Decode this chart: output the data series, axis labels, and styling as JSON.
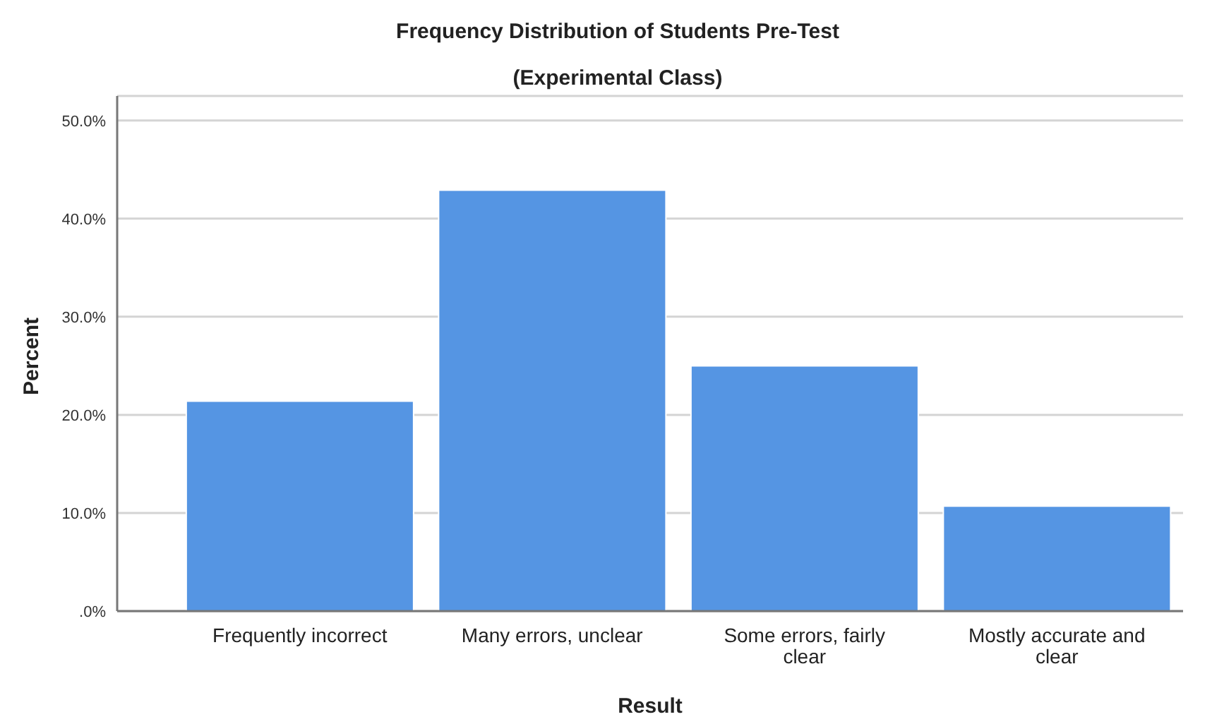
{
  "chart_data": {
    "type": "bar",
    "title": "Frequency Distribution of Students Pre-Test",
    "subtitle": "(Experimental Class)",
    "xlabel": "Result",
    "ylabel": "Percent",
    "categories": [
      "Frequently incorrect",
      "Many errors, unclear",
      "Some errors, fairly clear",
      "Mostly accurate and clear"
    ],
    "values": [
      21.4,
      42.9,
      25.0,
      10.7
    ],
    "color": "#5595e3",
    "ylim": [
      0,
      52.5
    ],
    "yticks": [
      {
        "value": 0,
        "label": ".0%"
      },
      {
        "value": 10,
        "label": "10.0%"
      },
      {
        "value": 20,
        "label": "20.0%"
      },
      {
        "value": 30,
        "label": "30.0%"
      },
      {
        "value": 40,
        "label": "40.0%"
      },
      {
        "value": 50,
        "label": "50.0%"
      }
    ],
    "grid": "y",
    "legend": false
  }
}
